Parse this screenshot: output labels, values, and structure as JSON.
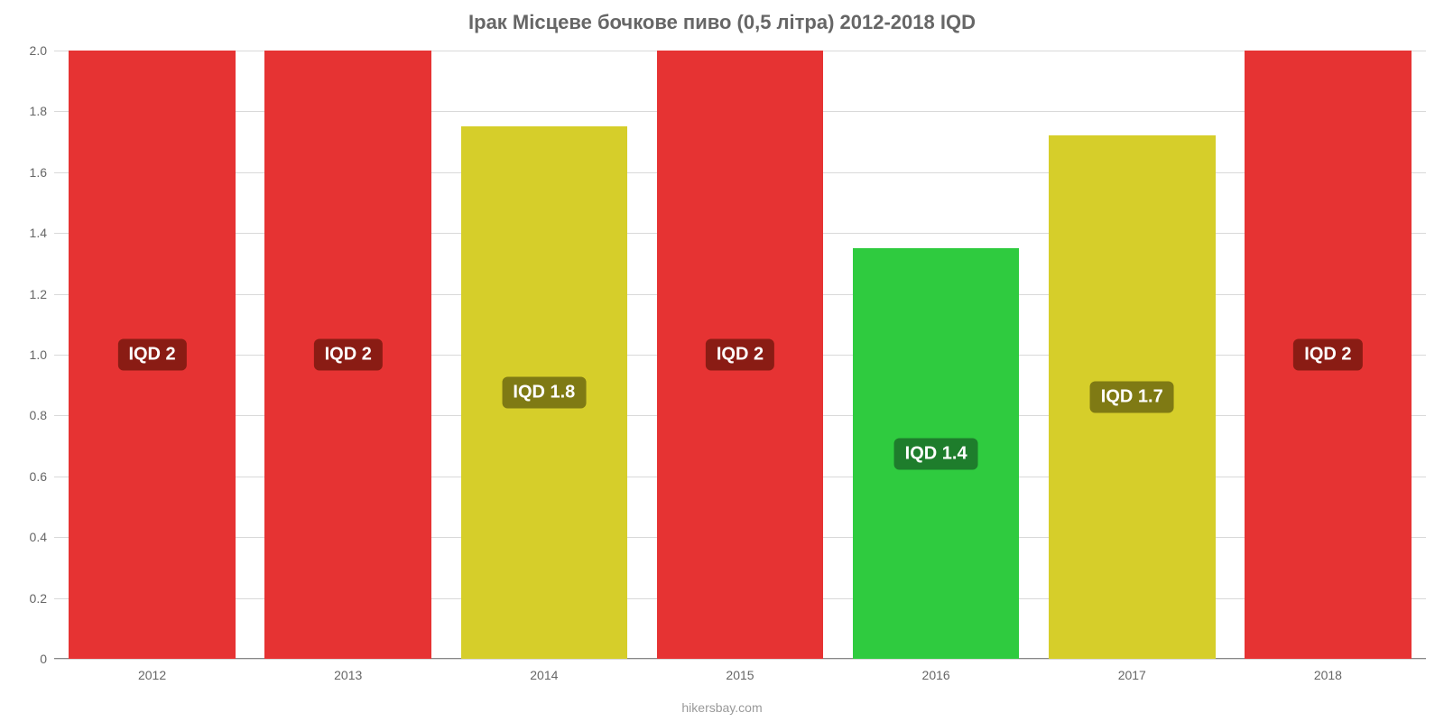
{
  "chart": {
    "type": "bar",
    "title": "Ірак Місцеве бочкове пиво (0,5 літра) 2012-2018 IQD",
    "title_fontsize": 22,
    "title_color": "#666666",
    "background_color": "#ffffff",
    "attribution": "hikersbay.com",
    "attribution_fontsize": 14,
    "attribution_color": "#999999",
    "axis_label_color": "#666666",
    "axis_label_fontsize": 14,
    "ylim": [
      0,
      2.0
    ],
    "ytick_step": 0.2,
    "yticks": [
      "0",
      "0.2",
      "0.4",
      "0.6",
      "0.8",
      "1.0",
      "1.2",
      "1.4",
      "1.6",
      "1.8",
      "2.0"
    ],
    "grid_color": "#d9d9d9",
    "xaxis_color": "#888888",
    "bar_width_pct": 85,
    "label_fontsize": 20,
    "label_padding": "6px 12px",
    "label_radius": 6,
    "categories": [
      "2012",
      "2013",
      "2014",
      "2015",
      "2016",
      "2017",
      "2018"
    ],
    "values": [
      2.0,
      2.0,
      1.75,
      2.0,
      1.35,
      1.72,
      2.0
    ],
    "bar_colors": [
      "#e63333",
      "#e63333",
      "#d6ce2a",
      "#e63333",
      "#2fcb3f",
      "#d6ce2a",
      "#e63333"
    ],
    "value_labels": [
      "IQD 2",
      "IQD 2",
      "IQD 1.8",
      "IQD 2",
      "IQD 1.4",
      "IQD 1.7",
      "IQD 2"
    ],
    "label_bg_colors": [
      "#8a1c14",
      "#8a1c14",
      "#7f7a14",
      "#8a1c14",
      "#1e7d2c",
      "#7f7a14",
      "#8a1c14"
    ],
    "label_text_color": "#ffffff"
  }
}
